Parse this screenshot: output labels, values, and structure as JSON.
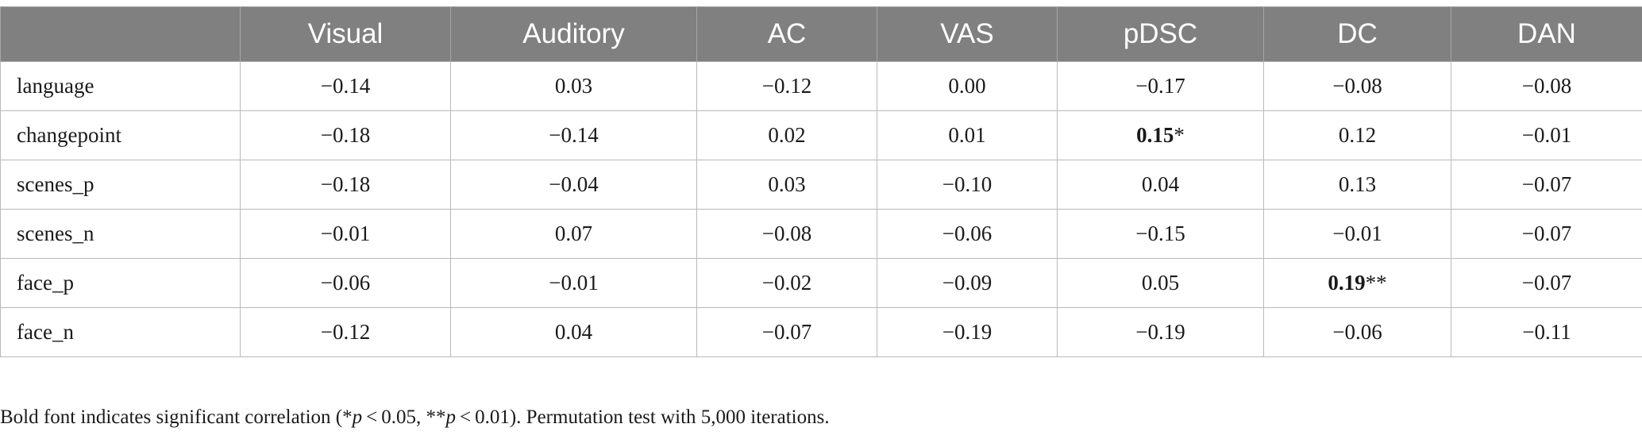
{
  "table": {
    "columns": [
      "",
      "Visual",
      "Auditory",
      "AC",
      "VAS",
      "pDSC",
      "DC",
      "DAN"
    ],
    "rows": [
      {
        "label": "language",
        "cells": [
          {
            "value": "−0.14",
            "sig": ""
          },
          {
            "value": "0.03",
            "sig": ""
          },
          {
            "value": "−0.12",
            "sig": ""
          },
          {
            "value": "0.00",
            "sig": ""
          },
          {
            "value": "−0.17",
            "sig": ""
          },
          {
            "value": "−0.08",
            "sig": ""
          },
          {
            "value": "−0.08",
            "sig": ""
          }
        ]
      },
      {
        "label": "changepoint",
        "cells": [
          {
            "value": "−0.18",
            "sig": ""
          },
          {
            "value": "−0.14",
            "sig": ""
          },
          {
            "value": "0.02",
            "sig": ""
          },
          {
            "value": "0.01",
            "sig": ""
          },
          {
            "value": "0.15",
            "sig": "*"
          },
          {
            "value": "0.12",
            "sig": ""
          },
          {
            "value": "−0.01",
            "sig": ""
          }
        ]
      },
      {
        "label": "scenes_p",
        "cells": [
          {
            "value": "−0.18",
            "sig": ""
          },
          {
            "value": "−0.04",
            "sig": ""
          },
          {
            "value": "0.03",
            "sig": ""
          },
          {
            "value": "−0.10",
            "sig": ""
          },
          {
            "value": "0.04",
            "sig": ""
          },
          {
            "value": "0.13",
            "sig": ""
          },
          {
            "value": "−0.07",
            "sig": ""
          }
        ]
      },
      {
        "label": "scenes_n",
        "cells": [
          {
            "value": "−0.01",
            "sig": ""
          },
          {
            "value": "0.07",
            "sig": ""
          },
          {
            "value": "−0.08",
            "sig": ""
          },
          {
            "value": "−0.06",
            "sig": ""
          },
          {
            "value": "−0.15",
            "sig": ""
          },
          {
            "value": "−0.01",
            "sig": ""
          },
          {
            "value": "−0.07",
            "sig": ""
          }
        ]
      },
      {
        "label": "face_p",
        "cells": [
          {
            "value": "−0.06",
            "sig": ""
          },
          {
            "value": "−0.01",
            "sig": ""
          },
          {
            "value": "−0.02",
            "sig": ""
          },
          {
            "value": "−0.09",
            "sig": ""
          },
          {
            "value": "0.05",
            "sig": ""
          },
          {
            "value": "0.19",
            "sig": "**"
          },
          {
            "value": "−0.07",
            "sig": ""
          }
        ]
      },
      {
        "label": "face_n",
        "cells": [
          {
            "value": "−0.12",
            "sig": ""
          },
          {
            "value": "0.04",
            "sig": ""
          },
          {
            "value": "−0.07",
            "sig": ""
          },
          {
            "value": "−0.19",
            "sig": ""
          },
          {
            "value": "−0.19",
            "sig": ""
          },
          {
            "value": "−0.06",
            "sig": ""
          },
          {
            "value": "−0.11",
            "sig": ""
          }
        ]
      }
    ]
  },
  "footnote": {
    "prefix": "Bold font indicates significant correlation (*",
    "p1_var": "p",
    "p1_rest": " < 0.05, **",
    "p2_var": "p",
    "p2_rest": " < 0.01). Permutation test with 5,000 iterations."
  },
  "colors": {
    "header_bg": "#808080",
    "header_text": "#ffffff",
    "grid": "#b9b9b9"
  }
}
